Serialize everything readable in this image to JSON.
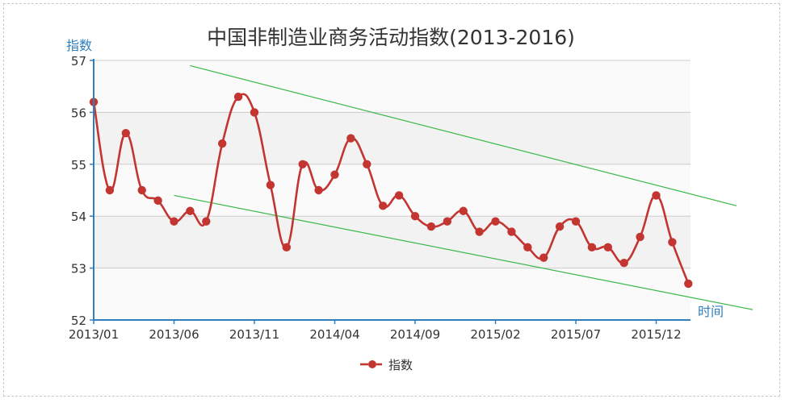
{
  "chart_data": {
    "type": "line",
    "title": "中国非制造业商务活动指数(2013-2016)",
    "xlabel": "时间",
    "ylabel": "指数",
    "ylim": [
      52,
      57
    ],
    "yticks": [
      52,
      53,
      54,
      55,
      56,
      57
    ],
    "x": [
      "2013/01",
      "2013/02",
      "2013/03",
      "2013/04",
      "2013/05",
      "2013/06",
      "2013/07",
      "2013/08",
      "2013/09",
      "2013/10",
      "2013/11",
      "2013/12",
      "2014/01",
      "2014/02",
      "2014/03",
      "2014/04",
      "2014/05",
      "2014/06",
      "2014/07",
      "2014/08",
      "2014/09",
      "2014/10",
      "2014/11",
      "2014/12",
      "2015/01",
      "2015/02",
      "2015/03",
      "2015/04",
      "2015/05",
      "2015/06",
      "2015/07",
      "2015/08",
      "2015/09",
      "2015/10",
      "2015/11",
      "2015/12",
      "2016/01",
      "2016/02"
    ],
    "xtick_labels": [
      "2013/01",
      "2013/06",
      "2013/11",
      "2014/04",
      "2014/09",
      "2015/02",
      "2015/07",
      "2015/12"
    ],
    "series": [
      {
        "name": "指数",
        "color": "#c23531",
        "values": [
          56.2,
          54.5,
          55.6,
          54.5,
          54.3,
          53.9,
          54.1,
          53.9,
          55.4,
          56.3,
          56.0,
          54.6,
          53.4,
          55.0,
          54.5,
          54.8,
          55.5,
          55.0,
          54.2,
          54.4,
          54.0,
          53.8,
          53.9,
          54.1,
          53.7,
          53.9,
          53.7,
          53.4,
          53.2,
          53.8,
          53.9,
          53.4,
          53.4,
          53.1,
          53.6,
          54.4,
          53.5,
          52.7
        ]
      }
    ],
    "trend_lines": {
      "color": "#3cb84a",
      "upper": [
        [
          "2013/07",
          56.9
        ],
        [
          "2016/05",
          54.2
        ]
      ],
      "lower": [
        [
          "2013/06",
          54.4
        ],
        [
          "2016/06",
          52.2
        ]
      ]
    },
    "grid": true,
    "legend": "bottom-center",
    "colors": {
      "series": "#c23531",
      "trend": "#3cb84a",
      "axis": "#2f7fbf",
      "band": "#f2f2f2"
    }
  }
}
